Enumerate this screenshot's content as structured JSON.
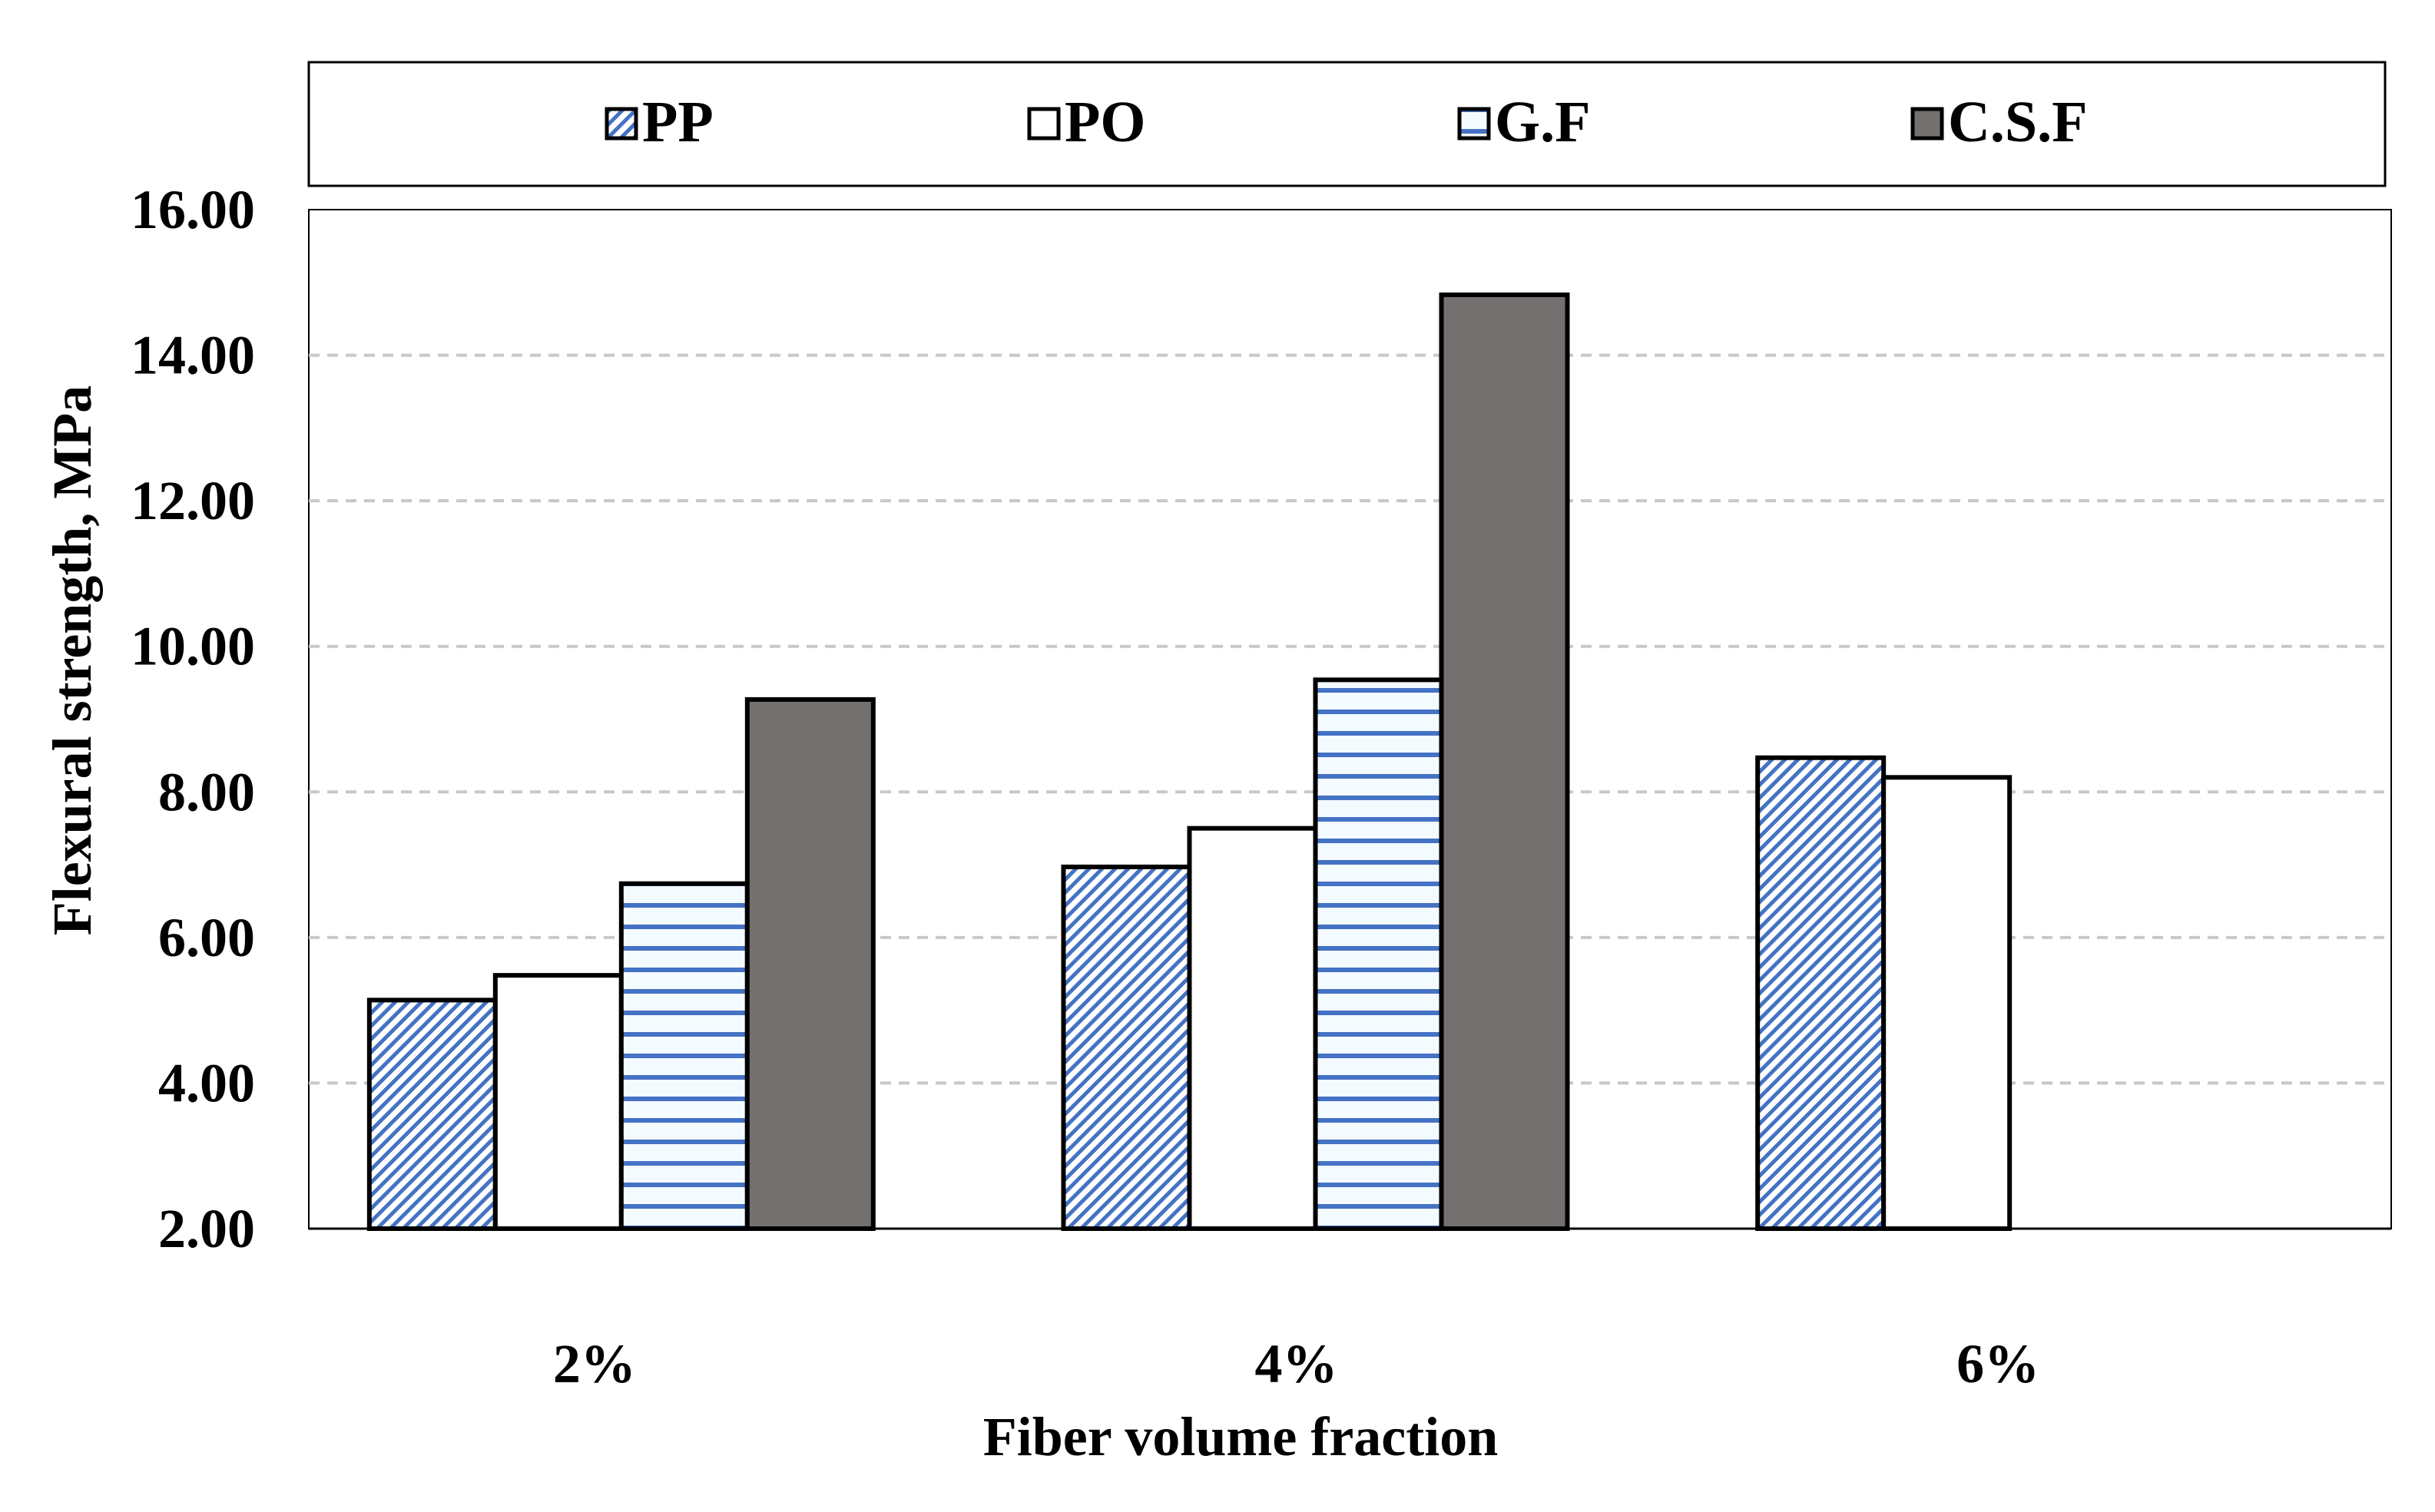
{
  "chart_data": {
    "type": "bar",
    "title": "",
    "xlabel": "Fiber volume fraction",
    "ylabel": "Flexural strength, MPa",
    "categories": [
      "2%",
      "4%",
      "6%"
    ],
    "ylim": [
      2.0,
      16.0
    ],
    "yticks": [
      "2.00",
      "4.00",
      "6.00",
      "8.00",
      "10.00",
      "12.00",
      "14.00",
      "16.00"
    ],
    "grid": true,
    "legend_position": "top",
    "series": [
      {
        "name": "PP",
        "values": [
          5.14,
          6.97,
          8.47
        ],
        "fill": "diagonal-hatch",
        "color": "#4472c4"
      },
      {
        "name": "PO",
        "values": [
          5.48,
          7.5,
          8.2
        ],
        "fill": "solid",
        "color": "#ffffff"
      },
      {
        "name": "G.F",
        "values": [
          6.74,
          9.54,
          null
        ],
        "fill": "horizontal-stripes",
        "color": "#4472c4"
      },
      {
        "name": "C.S.F",
        "values": [
          9.27,
          14.83,
          null
        ],
        "fill": "solid",
        "color": "#747070"
      }
    ]
  }
}
